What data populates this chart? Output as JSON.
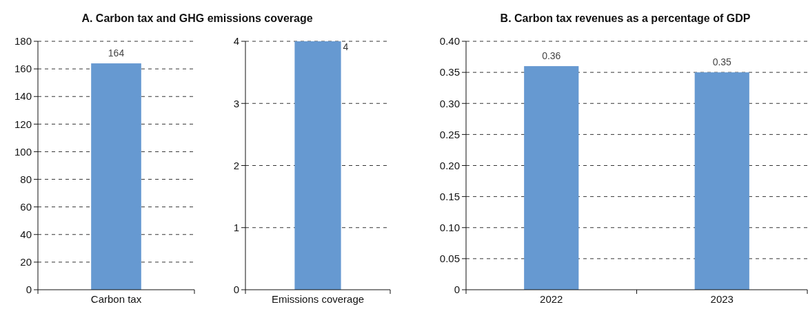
{
  "chart_data": [
    {
      "type": "bar",
      "title": "A. Carbon tax and GHG emissions coverage",
      "categories": [
        "Carbon tax"
      ],
      "values": [
        164
      ],
      "color": "#6699d1",
      "ylim": [
        0,
        180
      ],
      "yticks": [
        0,
        20,
        40,
        60,
        80,
        100,
        120,
        140,
        160,
        180
      ],
      "grid": "y",
      "data_labels": true
    },
    {
      "type": "bar",
      "categories": [
        "Emissions coverage"
      ],
      "values": [
        4
      ],
      "color": "#6699d1",
      "ylim": [
        0,
        4
      ],
      "yticks": [
        0,
        1,
        2,
        3,
        4
      ],
      "grid": "y",
      "data_labels": true
    },
    {
      "type": "bar",
      "title": "B. Carbon tax revenues as a percentage of GDP",
      "categories": [
        "2022",
        "2023"
      ],
      "values": [
        0.36,
        0.35
      ],
      "color": "#6699d1",
      "ylim": [
        0,
        0.4
      ],
      "yticks": [
        0,
        0.05,
        {
          "value": 0.1,
          "label": "0.10"
        },
        0.15,
        {
          "value": 0.2,
          "label": "0.20"
        },
        0.25,
        {
          "value": 0.3,
          "label": "0.30"
        },
        0.35,
        {
          "value": 0.4,
          "label": "0.40"
        }
      ],
      "grid": "y",
      "data_labels": true
    }
  ]
}
